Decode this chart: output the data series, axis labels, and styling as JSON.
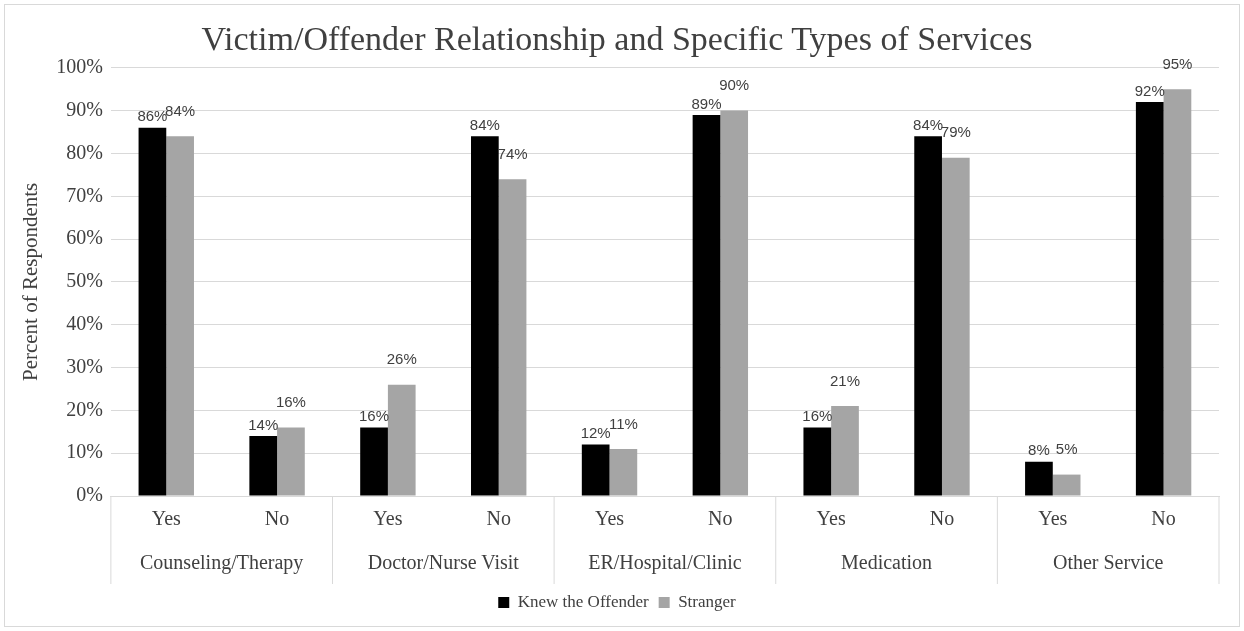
{
  "chart_data": {
    "type": "bar",
    "title": "Victim/Offender Relationship and Specific Types of Services",
    "ylabel": "Percent of Respondents",
    "categories": [
      "Yes",
      "No",
      "Yes",
      "No",
      "Yes",
      "No",
      "Yes",
      "No",
      "Yes",
      "No"
    ],
    "annotations": [
      "Counseling/Therapy",
      "Doctor/Nurse Visit",
      "ER/Hospital/Clinic",
      "Medication",
      "Other Service"
    ],
    "series": [
      {
        "name": "Knew the Offender",
        "color": "#000000",
        "values": [
          86,
          14,
          16,
          84,
          12,
          89,
          16,
          84,
          8,
          92
        ],
        "value_labels": [
          "86%",
          "14%",
          "16%",
          "84%",
          "12%",
          "89%",
          "16%",
          "84%",
          "8%",
          "92%"
        ]
      },
      {
        "name": "Stranger",
        "color": "#a5a5a5",
        "values": [
          84,
          16,
          26,
          74,
          11,
          90,
          21,
          79,
          5,
          95
        ],
        "value_labels": [
          "84%",
          "16%",
          "26%",
          "74%",
          "11%",
          "90%",
          "21%",
          "79%",
          "5%",
          "95%"
        ]
      }
    ],
    "ylim": [
      0,
      100
    ],
    "yticks": [
      {
        "value": 0,
        "label": "0%"
      },
      {
        "value": 10,
        "label": "10%"
      },
      {
        "value": 20,
        "label": "20%"
      },
      {
        "value": 30,
        "label": "30%"
      },
      {
        "value": 40,
        "label": "40%"
      },
      {
        "value": 50,
        "label": "50%"
      },
      {
        "value": 60,
        "label": "60%"
      },
      {
        "value": 70,
        "label": "70%"
      },
      {
        "value": 80,
        "label": "80%"
      },
      {
        "value": 90,
        "label": "90%"
      },
      {
        "value": 100,
        "label": "100%"
      }
    ],
    "grid": "y",
    "legend": "bottom"
  }
}
